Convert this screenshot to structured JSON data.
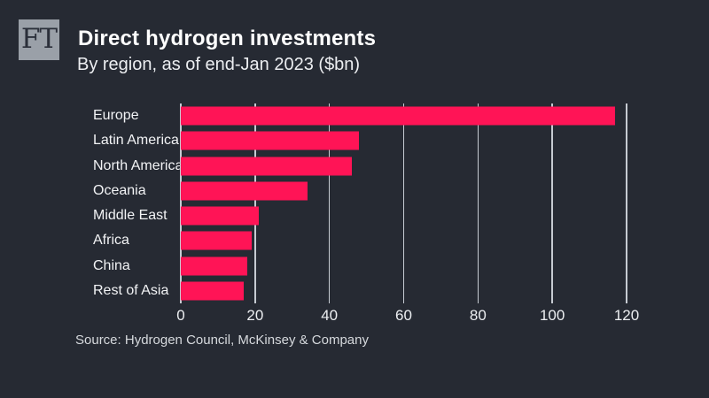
{
  "logo": {
    "text": "FT"
  },
  "chart_data": {
    "type": "bar",
    "orientation": "horizontal",
    "title": "Direct hydrogen investments",
    "subtitle": "By region, as of end-Jan 2023 ($bn)",
    "categories": [
      "Europe",
      "Latin America",
      "North America",
      "Oceania",
      "Middle East",
      "Africa",
      "China",
      "Rest of Asia"
    ],
    "values": [
      117,
      48,
      46,
      34,
      21,
      19,
      18,
      17
    ],
    "xlim": [
      0,
      120
    ],
    "tick_labels": [
      "0",
      "20",
      "40",
      "60",
      "80",
      "100",
      "120"
    ],
    "grid": "vertical-full-height",
    "legend": "none",
    "bar_color": "#ff1456",
    "background_color": "#262a33",
    "gridline_color": "#c6cbd2",
    "source": "Source: Hydrogen Council, McKinsey & Company"
  }
}
